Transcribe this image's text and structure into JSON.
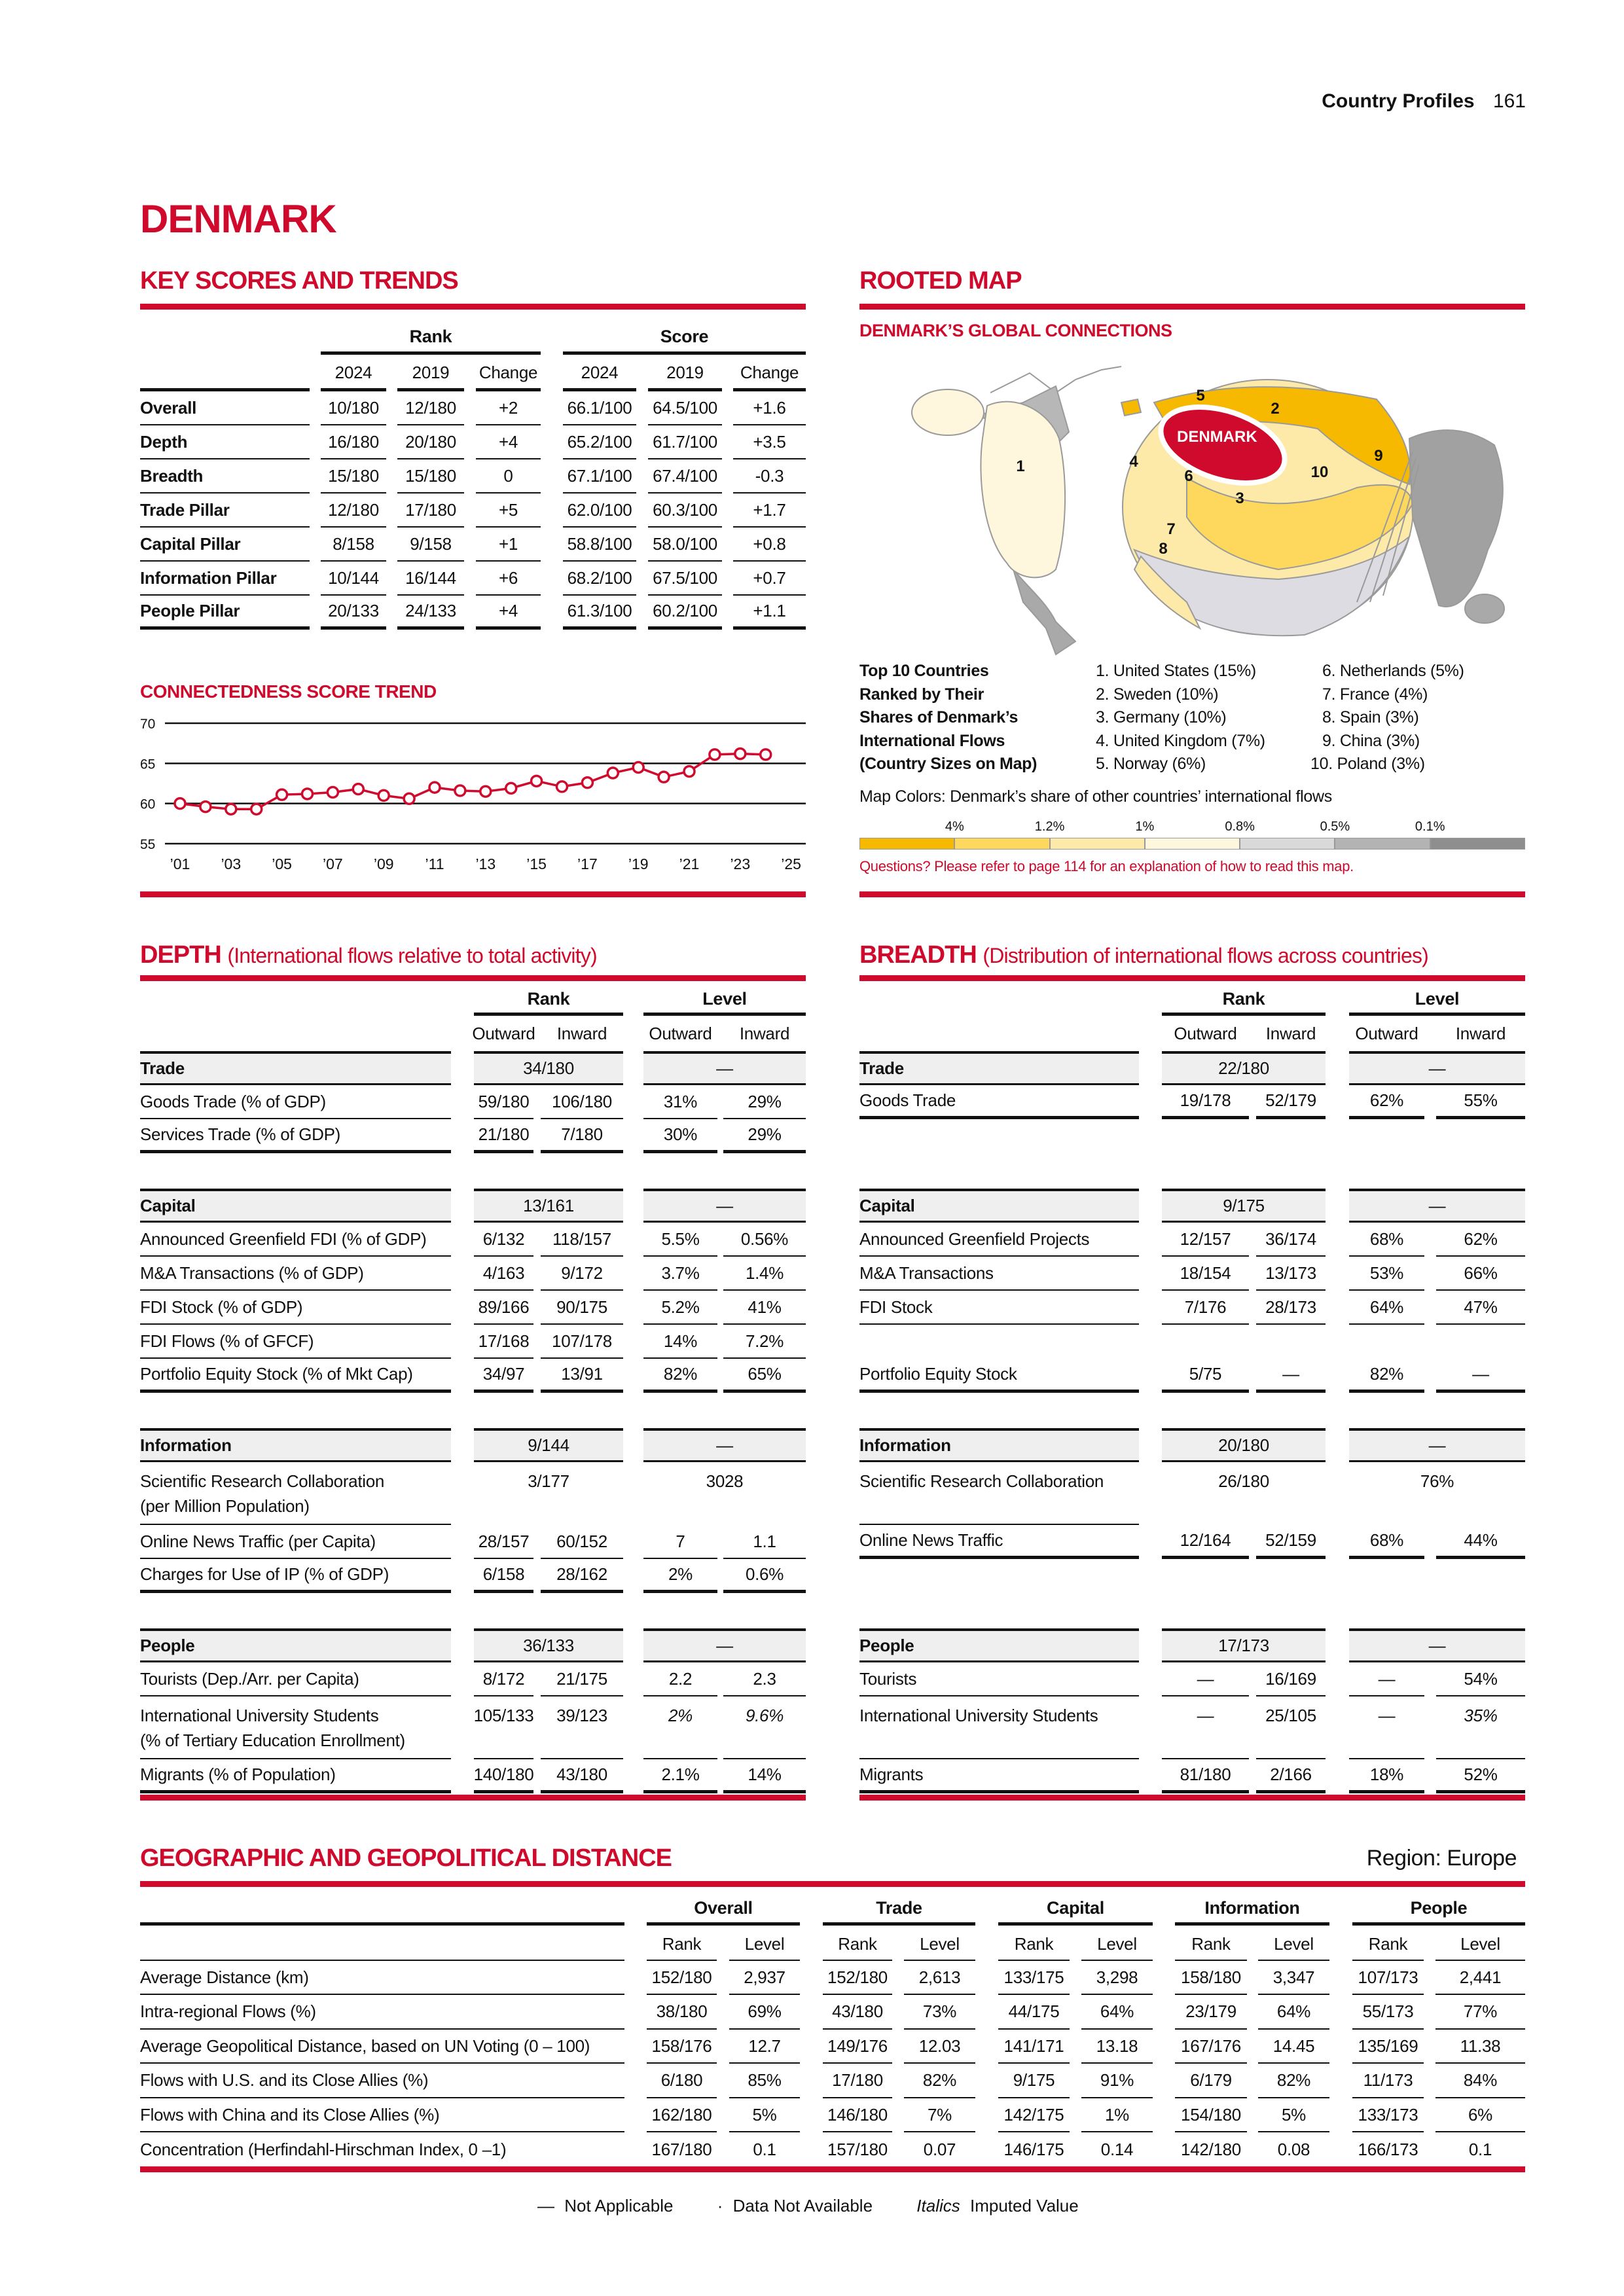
{
  "header": {
    "section": "Country Profiles",
    "page": "161"
  },
  "country": "DENMARK",
  "key_scores": {
    "title": "KEY SCORES AND TRENDS",
    "rank_header": "Rank",
    "score_header": "Score",
    "columns": [
      "2024",
      "2019",
      "Change",
      "2024",
      "2019",
      "Change"
    ],
    "rows": [
      {
        "label": "Overall",
        "values": [
          "10/180",
          "12/180",
          "+2",
          "66.1/100",
          "64.5/100",
          "+1.6"
        ]
      },
      {
        "label": "Depth",
        "values": [
          "16/180",
          "20/180",
          "+4",
          "65.2/100",
          "61.7/100",
          "+3.5"
        ]
      },
      {
        "label": "Breadth",
        "values": [
          "15/180",
          "15/180",
          "0",
          "67.1/100",
          "67.4/100",
          "-0.3"
        ]
      },
      {
        "label": "Trade Pillar",
        "values": [
          "12/180",
          "17/180",
          "+5",
          "62.0/100",
          "60.3/100",
          "+1.7"
        ]
      },
      {
        "label": "Capital Pillar",
        "values": [
          "8/158",
          "9/158",
          "+1",
          "58.8/100",
          "58.0/100",
          "+0.8"
        ]
      },
      {
        "label": "Information Pillar",
        "values": [
          "10/144",
          "16/144",
          "+6",
          "68.2/100",
          "67.5/100",
          "+0.7"
        ]
      },
      {
        "label": "People Pillar",
        "values": [
          "20/133",
          "24/133",
          "+4",
          "61.3/100",
          "60.2/100",
          "+1.1"
        ]
      }
    ]
  },
  "chart_data": {
    "type": "line",
    "title": "CONNECTEDNESS SCORE TREND",
    "x": [
      2001,
      2002,
      2003,
      2004,
      2005,
      2006,
      2007,
      2008,
      2009,
      2010,
      2011,
      2012,
      2013,
      2014,
      2015,
      2016,
      2017,
      2018,
      2019,
      2020,
      2021,
      2022,
      2023,
      2024
    ],
    "values": [
      60.0,
      59.6,
      59.3,
      59.3,
      61.1,
      61.2,
      61.4,
      61.8,
      61.0,
      60.6,
      62.0,
      61.6,
      61.5,
      61.9,
      62.8,
      62.1,
      62.6,
      63.8,
      64.5,
      63.3,
      64.0,
      66.1,
      66.2,
      66.1
    ],
    "ylim": [
      55,
      70
    ],
    "yticks": [
      "55",
      "60",
      "65",
      "70"
    ],
    "xtick_labels": [
      "’01",
      "’03",
      "’05",
      "’07",
      "’09",
      "’11",
      "’13",
      "’15",
      "’17",
      "’19",
      "’21",
      "’23",
      "’25"
    ],
    "xlim": [
      2001,
      2025
    ],
    "grid": true,
    "color": "#cf0a2c"
  },
  "rooted_map": {
    "title": "ROOTED MAP",
    "subtitle": "DENMARK’S GLOBAL CONNECTIONS",
    "home_label": "DENMARK",
    "number_labels": [
      "1",
      "2",
      "3",
      "4",
      "5",
      "6",
      "7",
      "8",
      "9",
      "10"
    ],
    "top10_heading": [
      "Top 10 Countries",
      "Ranked by Their",
      "Shares of Denmark’s",
      "International Flows",
      "(Country Sizes on Map)"
    ],
    "top10": [
      "1. United States (15%)",
      "2. Sweden (10%)",
      "3. Germany (10%)",
      "4. United Kingdom (7%)",
      "5. Norway (6%)",
      "6. Netherlands (5%)",
      "7. France (4%)",
      "8. Spain (3%)",
      "9. China (3%)",
      "10. Poland (3%)"
    ],
    "colors_caption": "Map Colors: Denmark’s share of other countries’ international flows",
    "legend_thresholds": [
      "4%",
      "1.2%",
      "1%",
      "0.8%",
      "0.5%",
      "0.1%"
    ],
    "legend_colors": [
      "#f6b900",
      "#fdd85c",
      "#fdeaa8",
      "#fff6de",
      "#d9d9d9",
      "#b3b3b3",
      "#8e8e8e"
    ],
    "note": "Questions? Please refer to page 114 for an explanation of how to read this map."
  },
  "depth": {
    "title": "DEPTH",
    "subtitle": "(International flows relative to total activity)",
    "rank_header": "Rank",
    "level_header": "Level",
    "sub_headers": [
      "Outward",
      "Inward",
      "Outward",
      "Inward"
    ],
    "groups": [
      {
        "label": "Trade",
        "rank": "34/180",
        "level": "—",
        "rows": [
          {
            "label": "Goods Trade (% of GDP)",
            "values": [
              "59/180",
              "106/180",
              "31%",
              "29%"
            ]
          },
          {
            "label": "Services Trade (% of GDP)",
            "values": [
              "21/180",
              "7/180",
              "30%",
              "29%"
            ]
          }
        ]
      },
      {
        "label": "Capital",
        "rank": "13/161",
        "level": "—",
        "rows": [
          {
            "label": "Announced Greenfield FDI (% of GDP)",
            "values": [
              "6/132",
              "118/157",
              "5.5%",
              "0.56%"
            ]
          },
          {
            "label": "M&A Transactions (% of GDP)",
            "values": [
              "4/163",
              "9/172",
              "3.7%",
              "1.4%"
            ]
          },
          {
            "label": "FDI Stock (% of GDP)",
            "values": [
              "89/166",
              "90/175",
              "5.2%",
              "41%"
            ]
          },
          {
            "label": "FDI Flows (% of GFCF)",
            "values": [
              "17/168",
              "107/178",
              "14%",
              "7.2%"
            ]
          },
          {
            "label": "Portfolio Equity Stock (% of Mkt Cap)",
            "values": [
              "34/97",
              "13/91",
              "82%",
              "65%"
            ]
          }
        ]
      },
      {
        "label": "Information",
        "rank": "9/144",
        "level": "—",
        "rows": [
          {
            "label_lines": [
              "Scientific Research Collaboration",
              "(per Million Population)"
            ],
            "rank": "3/177",
            "level": "3028"
          },
          {
            "label": "Online News Traffic (per Capita)",
            "values": [
              "28/157",
              "60/152",
              "7",
              "1.1"
            ]
          },
          {
            "label": "Charges for Use of IP (% of GDP)",
            "values": [
              "6/158",
              "28/162",
              "2%",
              "0.6%"
            ]
          }
        ]
      },
      {
        "label": "People",
        "rank": "36/133",
        "level": "—",
        "rows": [
          {
            "label": "Tourists (Dep./Arr. per Capita)",
            "values": [
              "8/172",
              "21/175",
              "2.2",
              "2.3"
            ]
          },
          {
            "label_lines": [
              "International University Students",
              "(% of Tertiary Education Enrollment)"
            ],
            "values": [
              "105/133",
              "39/123",
              "2%",
              "9.6%"
            ],
            "imputed": [
              false,
              false,
              true,
              true
            ]
          },
          {
            "label": "Migrants (% of Population)",
            "values": [
              "140/180",
              "43/180",
              "2.1%",
              "14%"
            ]
          }
        ]
      }
    ]
  },
  "breadth": {
    "title": "BREADTH",
    "subtitle": "(Distribution of international flows across countries)",
    "rank_header": "Rank",
    "level_header": "Level",
    "sub_headers": [
      "Outward",
      "Inward",
      "Outward",
      "Inward"
    ],
    "groups": [
      {
        "label": "Trade",
        "rank": "22/180",
        "level": "—",
        "rows": [
          {
            "label": "Goods Trade",
            "values": [
              "19/178",
              "52/179",
              "62%",
              "55%"
            ]
          },
          {
            "blank": true
          }
        ]
      },
      {
        "label": "Capital",
        "rank": "9/175",
        "level": "—",
        "rows": [
          {
            "label": "Announced Greenfield Projects",
            "values": [
              "12/157",
              "36/174",
              "68%",
              "62%"
            ]
          },
          {
            "label": "M&A Transactions",
            "values": [
              "18/154",
              "13/173",
              "53%",
              "66%"
            ]
          },
          {
            "label": "FDI Stock",
            "values": [
              "7/176",
              "28/173",
              "64%",
              "47%"
            ]
          },
          {
            "blank": true
          },
          {
            "label": "Portfolio Equity Stock",
            "values": [
              "5/75",
              "—",
              "82%",
              "—"
            ]
          }
        ]
      },
      {
        "label": "Information",
        "rank": "20/180",
        "level": "—",
        "rows": [
          {
            "label_lines": [
              "Scientific Research Collaboration"
            ],
            "rank": "26/180",
            "level": "76%"
          },
          {
            "label": "Online News Traffic",
            "values": [
              "12/164",
              "52/159",
              "68%",
              "44%"
            ]
          },
          {
            "blank": true
          }
        ]
      },
      {
        "label": "People",
        "rank": "17/173",
        "level": "—",
        "rows": [
          {
            "label": "Tourists",
            "values": [
              "—",
              "16/169",
              "—",
              "54%"
            ]
          },
          {
            "label_lines": [
              "International University Students"
            ],
            "values": [
              "—",
              "25/105",
              "—",
              "35%"
            ],
            "imputed": [
              false,
              false,
              false,
              true
            ]
          },
          {
            "label": "Migrants",
            "values": [
              "81/180",
              "2/166",
              "18%",
              "52%"
            ]
          }
        ]
      }
    ]
  },
  "distance": {
    "title": "GEOGRAPHIC AND GEOPOLITICAL DISTANCE",
    "region": "Region: Europe",
    "groups": [
      "Overall",
      "Trade",
      "Capital",
      "Information",
      "People"
    ],
    "sub_headers": [
      "Rank",
      "Level"
    ],
    "rows": [
      {
        "label": "Average Distance (km)",
        "values": [
          "152/180",
          "2,937",
          "152/180",
          "2,613",
          "133/175",
          "3,298",
          "158/180",
          "3,347",
          "107/173",
          "2,441"
        ]
      },
      {
        "label": "Intra-regional Flows (%)",
        "values": [
          "38/180",
          "69%",
          "43/180",
          "73%",
          "44/175",
          "64%",
          "23/179",
          "64%",
          "55/173",
          "77%"
        ]
      },
      {
        "label": "Average Geopolitical Distance, based on UN Voting (0 – 100)",
        "values": [
          "158/176",
          "12.7",
          "149/176",
          "12.03",
          "141/171",
          "13.18",
          "167/176",
          "14.45",
          "135/169",
          "11.38"
        ]
      },
      {
        "label": "Flows with U.S. and its Close Allies (%)",
        "values": [
          "6/180",
          "85%",
          "17/180",
          "82%",
          "9/175",
          "91%",
          "6/179",
          "82%",
          "11/173",
          "84%"
        ]
      },
      {
        "label": "Flows with China and its Close Allies (%)",
        "values": [
          "162/180",
          "5%",
          "146/180",
          "7%",
          "142/175",
          "1%",
          "154/180",
          "5%",
          "133/173",
          "6%"
        ]
      },
      {
        "label": "Concentration (Herfindahl-Hirschman Index, 0 –1)",
        "values": [
          "167/180",
          "0.1",
          "157/180",
          "0.07",
          "146/175",
          "0.14",
          "142/180",
          "0.08",
          "166/173",
          "0.1"
        ]
      }
    ]
  },
  "legend": {
    "not_applicable_symbol": "—",
    "not_applicable": "Not Applicable",
    "not_available_symbol": "·",
    "not_available": "Data Not Available",
    "imputed_symbol": "Italics",
    "imputed": "Imputed Value"
  }
}
